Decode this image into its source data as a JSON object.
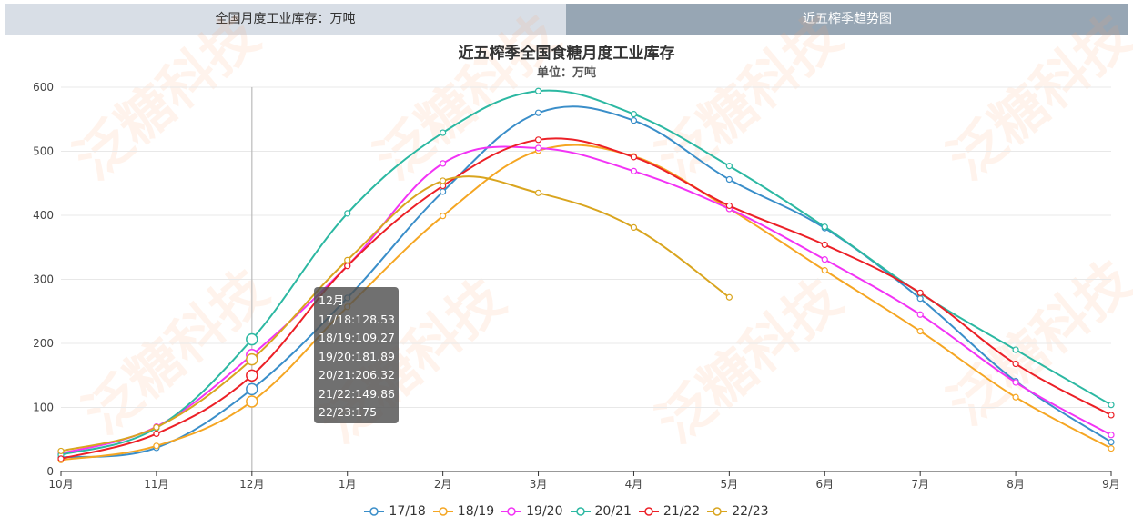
{
  "tabs": {
    "left": "全国月度工业库存：万吨",
    "right": "近五榨季趋势图"
  },
  "watermark": "泛糖科技",
  "colors": [
    "#3a8ec9",
    "#f5a623",
    "#f233f5",
    "#2cb8a2",
    "#ec2027",
    "#d9a51f"
  ],
  "chart_data": {
    "type": "line",
    "title": "近五榨季全国食糖月度工业库存",
    "subtitle": "单位：万吨",
    "categories": [
      "10月",
      "11月",
      "12月",
      "1月",
      "2月",
      "3月",
      "4月",
      "5月",
      "6月",
      "7月",
      "8月",
      "9月"
    ],
    "ylim": [
      0,
      600
    ],
    "yticks": [
      0,
      100,
      200,
      300,
      400,
      500,
      600
    ],
    "grid": true,
    "legend_position": "bottom",
    "series": [
      {
        "name": "17/18",
        "values": [
          22,
          37,
          128.53,
          271,
          437,
          560,
          548,
          456,
          380,
          270,
          141,
          46
        ]
      },
      {
        "name": "18/19",
        "values": [
          18,
          40,
          109.27,
          257,
          399,
          501,
          492,
          410,
          314,
          219,
          116,
          36
        ]
      },
      {
        "name": "19/20",
        "values": [
          28,
          70,
          181.89,
          321,
          481,
          505,
          469,
          410,
          331,
          245,
          139,
          57
        ]
      },
      {
        "name": "20/21",
        "values": [
          26,
          68,
          206.32,
          403,
          529,
          594,
          558,
          477,
          382,
          278,
          190,
          104
        ]
      },
      {
        "name": "21/22",
        "values": [
          20,
          59,
          149.86,
          321,
          446,
          518,
          491,
          415,
          354,
          279,
          168,
          88
        ]
      },
      {
        "name": "22/23",
        "values": [
          32,
          69,
          175,
          330,
          454,
          435,
          381,
          272,
          null,
          null,
          null,
          null
        ]
      }
    ],
    "tooltip": {
      "title": "12月",
      "lines": [
        "17/18:128.53",
        "18/19:109.27",
        "19/20:181.89",
        "20/21:206.32",
        "21/22:149.86",
        "22/23:175"
      ]
    }
  }
}
